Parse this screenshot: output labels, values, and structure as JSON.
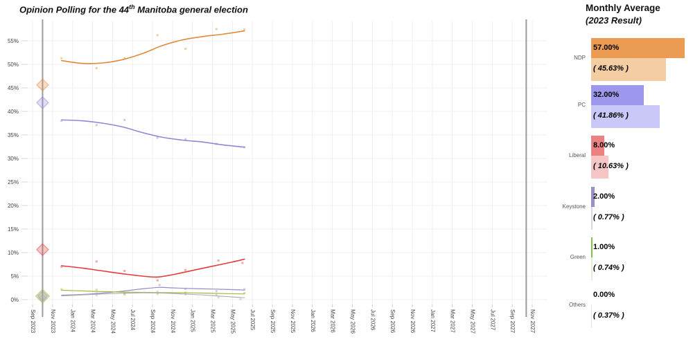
{
  "title": {
    "prefix": "Opinion Polling for the 44",
    "sup": "th",
    "suffix": " Manitoba general election"
  },
  "panel": {
    "title": "Monthly Average",
    "subtitle": "(2023 Result)"
  },
  "chart_data": {
    "type": "line",
    "title": "Opinion Polling for the 44th Manitoba general election",
    "xlabel": "",
    "ylabel": "",
    "ylim": [
      0,
      58
    ],
    "grid": true,
    "grid_color": "#efeef0",
    "election_line_color": "#9b9b9b",
    "y_ticks": [
      "0%",
      "5%",
      "10%",
      "15%",
      "20%",
      "25%",
      "30%",
      "35%",
      "40%",
      "45%",
      "50%",
      "55%"
    ],
    "x_ticks": [
      "Sep 2023",
      "Nov 2023",
      "Jan 2024",
      "Mar 2024",
      "May 2024",
      "Jul 2024",
      "Sep 2024",
      "Nov 2024",
      "Jan 2025",
      "Mar 2025",
      "May 2025",
      "Jul 2025",
      "Sep 2025",
      "Nov 2025",
      "Jan 2026",
      "Mar 2026",
      "May 2026",
      "Jul 2026",
      "Sep 2026",
      "Nov 2026",
      "Jan 2027",
      "Mar 2027",
      "May 2027",
      "Jul 2027",
      "Sep 2027",
      "Nov 2027"
    ],
    "election_markers": {
      "labels": [
        "Oct 2023",
        "Oct 2027"
      ],
      "month_index": [
        1,
        49.4
      ]
    },
    "series": [
      {
        "name": "NDP",
        "line_color": "#e08a3c",
        "bar_color": "#eb9b52",
        "bar_color_light": "#f5cda2",
        "line_width": 1.6,
        "diamond": 6,
        "monthly_avg": 57.0,
        "result_2023": 45.63,
        "monthly_avg_label": "57.00%",
        "result_2023_label": "( 45.63% )",
        "trend": [
          [
            2.9,
            50.8
          ],
          [
            5,
            50.2
          ],
          [
            7,
            50.3
          ],
          [
            9,
            51.0
          ],
          [
            11,
            52.3
          ],
          [
            13,
            54.0
          ],
          [
            15,
            55.2
          ],
          [
            17,
            55.9
          ],
          [
            19,
            56.4
          ],
          [
            21.2,
            57.1
          ]
        ],
        "polls": [
          [
            2.9,
            51.3
          ],
          [
            6.4,
            49.2
          ],
          [
            9.2,
            51.3
          ],
          [
            12.5,
            56.2
          ],
          [
            15.3,
            53.3
          ],
          [
            18.4,
            57.5
          ],
          [
            21.2,
            57.4
          ]
        ]
      },
      {
        "name": "PC",
        "line_color": "#8d87d8",
        "bar_color": "#9d98ee",
        "bar_color_light": "#cac8f8",
        "line_width": 1.6,
        "diamond": 6,
        "monthly_avg": 32.0,
        "result_2023": 41.86,
        "monthly_avg_label": "32.00%",
        "result_2023_label": "( 41.86% )",
        "trend": [
          [
            2.9,
            38.2
          ],
          [
            5,
            38.0
          ],
          [
            7,
            37.5
          ],
          [
            9,
            36.7
          ],
          [
            11,
            35.5
          ],
          [
            13,
            34.5
          ],
          [
            15,
            33.9
          ],
          [
            17,
            33.5
          ],
          [
            19,
            32.9
          ],
          [
            21.2,
            32.4
          ]
        ],
        "polls": [
          [
            2.9,
            38.0
          ],
          [
            6.4,
            37.1
          ],
          [
            9.2,
            38.2
          ],
          [
            12.5,
            34.4
          ],
          [
            15.3,
            34.1
          ],
          [
            18.4,
            33.1
          ],
          [
            21.2,
            32.4
          ]
        ]
      },
      {
        "name": "Liberal",
        "line_color": "#e23b3b",
        "bar_color": "#ec8181",
        "bar_color_light": "#f6c5c5",
        "line_width": 1.6,
        "diamond": 6,
        "monthly_avg": 8.0,
        "result_2023": 10.63,
        "monthly_avg_label": "8.00%",
        "result_2023_label": "( 10.63% )",
        "trend": [
          [
            2.9,
            7.2
          ],
          [
            5,
            6.7
          ],
          [
            7,
            6.1
          ],
          [
            9,
            5.5
          ],
          [
            11,
            5.0
          ],
          [
            12.5,
            4.8
          ],
          [
            14,
            5.3
          ],
          [
            16,
            6.2
          ],
          [
            18,
            7.1
          ],
          [
            20,
            8.0
          ],
          [
            21.2,
            8.6
          ]
        ],
        "polls": [
          [
            2.9,
            7.0
          ],
          [
            6.4,
            8.1
          ],
          [
            9.2,
            6.1
          ],
          [
            12.5,
            4.1
          ],
          [
            15.3,
            6.3
          ],
          [
            18.6,
            8.3
          ],
          [
            21.0,
            7.8
          ]
        ]
      },
      {
        "name": "Keystone",
        "line_color": "#958bc4",
        "bar_color": "#9a90c6",
        "bar_color_light": "#d7d3e9",
        "line_width": 1.2,
        "diamond": 5,
        "monthly_avg": 2.0,
        "result_2023": 0.77,
        "monthly_avg_label": "2.00%",
        "result_2023_label": "( 0.77% )",
        "trend": [
          [
            2.9,
            0.95
          ],
          [
            5,
            1.1
          ],
          [
            7,
            1.4
          ],
          [
            9,
            1.8
          ],
          [
            11,
            2.3
          ],
          [
            12.7,
            2.6
          ],
          [
            14,
            2.5
          ],
          [
            16,
            2.35
          ],
          [
            18,
            2.25
          ],
          [
            21.2,
            2.05
          ]
        ],
        "polls": [
          [
            6.4,
            1.3
          ],
          [
            9.2,
            1.4
          ],
          [
            12.7,
            3.1
          ],
          [
            15.3,
            2.3
          ],
          [
            18.4,
            1.8
          ],
          [
            21.2,
            2.2
          ]
        ]
      },
      {
        "name": "Green",
        "line_color": "#9eb93c",
        "bar_color": "#80c146",
        "bar_color_light": "#dfedd2",
        "line_width": 1.2,
        "diamond": 7,
        "monthly_avg": 1.0,
        "result_2023": 0.74,
        "monthly_avg_label": "1.00%",
        "result_2023_label": "( 0.74% )",
        "trend": [
          [
            2.9,
            2.0
          ],
          [
            5,
            1.85
          ],
          [
            7,
            1.7
          ],
          [
            9,
            1.6
          ],
          [
            11,
            1.55
          ],
          [
            13,
            1.5
          ],
          [
            15,
            1.45
          ],
          [
            17,
            1.4
          ],
          [
            19,
            1.3
          ],
          [
            21.2,
            1.2
          ]
        ],
        "polls": [
          [
            2.9,
            2.2
          ],
          [
            6.4,
            2.1
          ],
          [
            9.2,
            1.1
          ],
          [
            12.5,
            1.2
          ],
          [
            15.3,
            1.5
          ],
          [
            18.4,
            1.0
          ],
          [
            21.2,
            1.4
          ]
        ]
      },
      {
        "name": "Others",
        "line_color": "#b3adb3",
        "bar_color": "#cdc8c2",
        "bar_color_light": "#e6e2da",
        "line_width": 1.2,
        "diamond": 4,
        "monthly_avg": 0.0,
        "result_2023": 0.37,
        "monthly_avg_label": "0.00%",
        "result_2023_label": "( 0.37% )",
        "trend": [
          [
            2.9,
            0.8
          ],
          [
            5,
            1.0
          ],
          [
            7,
            1.2
          ],
          [
            9,
            1.35
          ],
          [
            11,
            1.45
          ],
          [
            13,
            1.4
          ],
          [
            15,
            1.2
          ],
          [
            17,
            1.0
          ],
          [
            19,
            0.7
          ],
          [
            21.2,
            0.4
          ]
        ],
        "polls": [
          [
            6.4,
            0.9
          ],
          [
            9.2,
            1.3
          ],
          [
            12.5,
            1.7
          ],
          [
            15.3,
            1.1
          ],
          [
            18.6,
            0.45
          ],
          [
            20.8,
            0.1
          ]
        ]
      }
    ]
  }
}
